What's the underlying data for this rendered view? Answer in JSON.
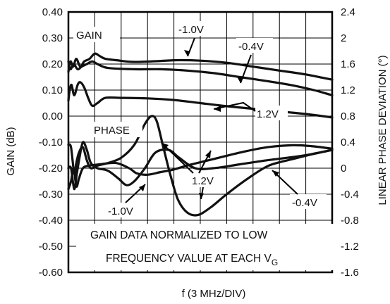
{
  "chart_data": {
    "type": "line",
    "xlabel": "f (3 MHz/DIV)",
    "ylabel": "GAIN (dB)",
    "y2label": "LINEAR PHASE DEVIATION (°)",
    "xlim": [
      0,
      10
    ],
    "ylim": [
      -0.6,
      0.4
    ],
    "y2lim": [
      -1.6,
      2.4
    ],
    "yticks": [
      "0.40",
      "0.30",
      "0.20",
      "0.10",
      "0.00",
      "-0.10",
      "-0.20",
      "-0.30",
      "-0.40",
      "-0.50",
      "-0.60"
    ],
    "y2ticks": [
      "2.4",
      "2",
      "1.6",
      "1.2",
      "0.8",
      "0.4",
      "0",
      "-0.4",
      "-0.8",
      "-1.2",
      "-1.6"
    ],
    "grid": true,
    "labels": {
      "gain": "GAIN",
      "phase": "PHASE",
      "gain_m10": "-1.0V",
      "gain_m04": "-0.4V",
      "gain_12": "1.2V",
      "phase_12": "1.2V",
      "phase_m10": "-1.0V",
      "phase_m04": "-0.4V"
    },
    "note_line1": "GAIN DATA NORMALIZED TO LOW",
    "note_line2": "FREQUENCY VALUE AT EACH V",
    "note_sub": "G",
    "series": [
      {
        "group": "gain",
        "name": "-1.0V",
        "axis": "left",
        "points": [
          [
            0.0,
            0.17
          ],
          [
            0.08,
            0.21
          ],
          [
            0.18,
            0.19
          ],
          [
            0.3,
            0.22
          ],
          [
            0.45,
            0.19
          ],
          [
            0.6,
            0.21
          ],
          [
            0.8,
            0.22
          ],
          [
            1.0,
            0.24
          ],
          [
            1.2,
            0.23
          ],
          [
            1.4,
            0.22
          ],
          [
            1.8,
            0.215
          ],
          [
            2.5,
            0.208
          ],
          [
            3.5,
            0.212
          ],
          [
            4.2,
            0.215
          ],
          [
            5.0,
            0.213
          ],
          [
            6.0,
            0.205
          ],
          [
            7.0,
            0.19
          ],
          [
            8.0,
            0.175
          ],
          [
            9.0,
            0.16
          ],
          [
            9.6,
            0.148
          ],
          [
            10.0,
            0.14
          ]
        ]
      },
      {
        "group": "gain",
        "name": "-0.4V",
        "axis": "left",
        "points": [
          [
            0.0,
            0.21
          ],
          [
            0.08,
            0.18
          ],
          [
            0.2,
            0.2
          ],
          [
            0.35,
            0.18
          ],
          [
            0.5,
            0.19
          ],
          [
            0.7,
            0.2
          ],
          [
            0.9,
            0.21
          ],
          [
            1.1,
            0.2
          ],
          [
            1.5,
            0.185
          ],
          [
            2.5,
            0.18
          ],
          [
            3.5,
            0.18
          ],
          [
            4.5,
            0.175
          ],
          [
            5.5,
            0.165
          ],
          [
            6.5,
            0.15
          ],
          [
            7.5,
            0.135
          ],
          [
            8.5,
            0.118
          ],
          [
            9.3,
            0.1
          ],
          [
            10.0,
            0.08
          ]
        ]
      },
      {
        "group": "gain",
        "name": "1.2V",
        "axis": "left",
        "points": [
          [
            0.0,
            0.06
          ],
          [
            0.05,
            0.1
          ],
          [
            0.12,
            0.12
          ],
          [
            0.22,
            0.08
          ],
          [
            0.35,
            0.12
          ],
          [
            0.45,
            0.13
          ],
          [
            0.6,
            0.11
          ],
          [
            0.75,
            0.07
          ],
          [
            0.9,
            0.04
          ],
          [
            1.1,
            0.05
          ],
          [
            1.4,
            0.07
          ],
          [
            2.0,
            0.07
          ],
          [
            3.0,
            0.068
          ],
          [
            4.0,
            0.062
          ],
          [
            5.0,
            0.05
          ],
          [
            6.0,
            0.038
          ],
          [
            7.0,
            0.028
          ],
          [
            8.0,
            0.018
          ],
          [
            9.0,
            0.008
          ],
          [
            10.0,
            -0.005
          ]
        ]
      },
      {
        "group": "phase",
        "name": "1.2V",
        "axis": "left",
        "points": [
          [
            0.0,
            -0.11
          ],
          [
            0.1,
            -0.12
          ],
          [
            0.22,
            -0.22
          ],
          [
            0.3,
            -0.18
          ],
          [
            0.4,
            -0.14
          ],
          [
            0.55,
            -0.12
          ],
          [
            0.7,
            -0.17
          ],
          [
            0.85,
            -0.2
          ],
          [
            1.1,
            -0.19
          ],
          [
            1.5,
            -0.18
          ],
          [
            2.0,
            -0.16
          ],
          [
            2.5,
            -0.11
          ],
          [
            2.9,
            -0.03
          ],
          [
            3.15,
            0.0
          ],
          [
            3.35,
            -0.02
          ],
          [
            3.6,
            -0.12
          ],
          [
            3.85,
            -0.22
          ],
          [
            4.15,
            -0.32
          ],
          [
            4.5,
            -0.37
          ],
          [
            4.9,
            -0.38
          ],
          [
            5.4,
            -0.35
          ],
          [
            6.0,
            -0.3
          ],
          [
            6.8,
            -0.24
          ],
          [
            7.6,
            -0.19
          ],
          [
            8.5,
            -0.165
          ],
          [
            9.3,
            -0.145
          ],
          [
            10.0,
            -0.13
          ]
        ]
      },
      {
        "group": "phase",
        "name": "-1.0V",
        "axis": "left",
        "points": [
          [
            0.0,
            -0.2
          ],
          [
            0.1,
            -0.2
          ],
          [
            0.22,
            -0.28
          ],
          [
            0.32,
            -0.22
          ],
          [
            0.42,
            -0.16
          ],
          [
            0.55,
            -0.1
          ],
          [
            0.7,
            -0.13
          ],
          [
            0.85,
            -0.18
          ],
          [
            1.1,
            -0.2
          ],
          [
            1.5,
            -0.21
          ],
          [
            1.9,
            -0.24
          ],
          [
            2.2,
            -0.265
          ],
          [
            2.5,
            -0.25
          ],
          [
            2.9,
            -0.2
          ],
          [
            3.3,
            -0.14
          ],
          [
            3.8,
            -0.13
          ],
          [
            4.2,
            -0.16
          ],
          [
            4.8,
            -0.2
          ],
          [
            5.5,
            -0.2
          ],
          [
            6.5,
            -0.185
          ],
          [
            7.5,
            -0.17
          ],
          [
            8.3,
            -0.16
          ],
          [
            9.0,
            -0.15
          ],
          [
            10.0,
            -0.13
          ]
        ]
      },
      {
        "group": "phase",
        "name": "-0.4V",
        "axis": "left",
        "points": [
          [
            0.0,
            -0.28
          ],
          [
            0.1,
            -0.25
          ],
          [
            0.2,
            -0.2
          ],
          [
            0.3,
            -0.27
          ],
          [
            0.4,
            -0.24
          ],
          [
            0.55,
            -0.2
          ],
          [
            0.8,
            -0.19
          ],
          [
            1.2,
            -0.185
          ],
          [
            1.8,
            -0.18
          ],
          [
            2.3,
            -0.2
          ],
          [
            2.6,
            -0.22
          ],
          [
            3.0,
            -0.225
          ],
          [
            3.5,
            -0.215
          ],
          [
            4.0,
            -0.205
          ],
          [
            4.5,
            -0.19
          ],
          [
            5.5,
            -0.165
          ],
          [
            6.5,
            -0.14
          ],
          [
            7.5,
            -0.12
          ],
          [
            8.5,
            -0.112
          ],
          [
            9.2,
            -0.115
          ],
          [
            10.0,
            -0.125
          ]
        ]
      }
    ]
  }
}
